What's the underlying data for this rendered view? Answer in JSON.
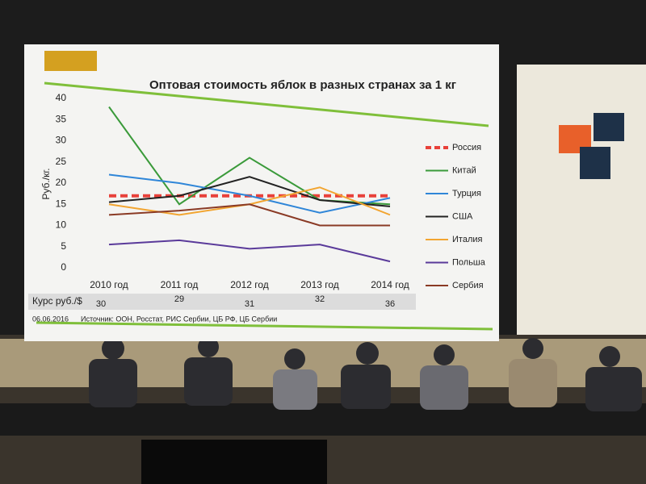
{
  "chart_data": {
    "type": "line",
    "title": "Оптовая стоимость яблок в разных странах за 1 кг",
    "y_label": "Руб./кг.",
    "categories": [
      "2010 год",
      "2011 год",
      "2012 год",
      "2013 год",
      "2014 год"
    ],
    "series": [
      {
        "name": "Россия",
        "color": "#e8413a",
        "dashed": true,
        "values": [
          17,
          17,
          17,
          17,
          17
        ]
      },
      {
        "name": "Китай",
        "color": "#3a9a3a",
        "values": [
          38,
          15,
          26,
          16,
          15
        ]
      },
      {
        "name": "Турция",
        "color": "#2f86d8",
        "values": [
          22,
          20,
          17,
          13,
          16.5
        ]
      },
      {
        "name": "США",
        "color": "#222222",
        "values": [
          15.5,
          17,
          21.5,
          16,
          14.5
        ]
      },
      {
        "name": "Италия",
        "color": "#f2a531",
        "values": [
          15,
          12.5,
          15,
          19,
          12.5
        ]
      },
      {
        "name": "Польша",
        "color": "#5a3a9a",
        "values": [
          5.5,
          6.5,
          4.5,
          5.5,
          1.5
        ]
      },
      {
        "name": "Сербия",
        "color": "#8a3a25",
        "values": [
          12.5,
          13.5,
          15,
          10,
          10
        ]
      }
    ],
    "ylim": [
      0,
      40
    ],
    "yticks": [
      0,
      5,
      10,
      15,
      20,
      25,
      30,
      35,
      40
    ],
    "exchange_rate_label": "Курс руб./$",
    "exchange_rate": [
      30,
      29,
      31,
      32,
      36
    ],
    "date": "06.06.2016",
    "source": "Источник:   ООН, Росстат, РИС Сербии, ЦБ РФ, ЦБ Сербии"
  }
}
